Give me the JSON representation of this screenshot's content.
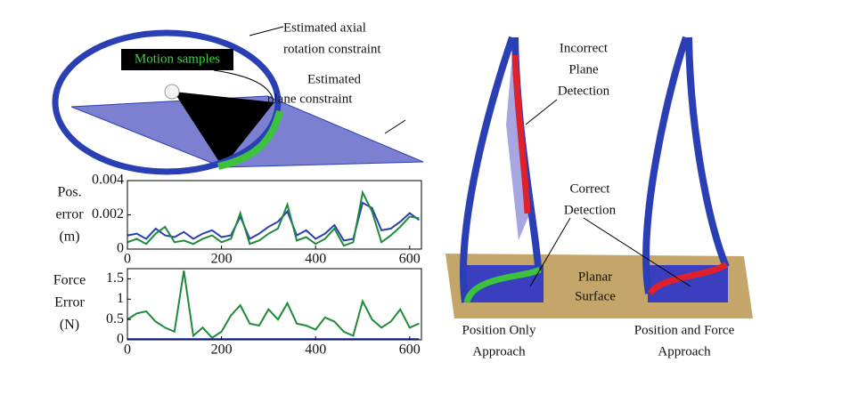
{
  "chart_data": [
    {
      "type": "line",
      "ylabel": [
        "Pos.",
        "error",
        "(m)"
      ],
      "x": [
        0,
        20,
        40,
        60,
        80,
        100,
        120,
        140,
        160,
        180,
        200,
        220,
        240,
        260,
        280,
        300,
        320,
        340,
        360,
        380,
        400,
        420,
        440,
        460,
        480,
        500,
        520,
        540,
        560,
        580,
        600,
        620
      ],
      "series": [
        {
          "color": "#2b3fb5",
          "values": [
            0.0008,
            0.0009,
            0.0006,
            0.0012,
            0.0008,
            0.0007,
            0.001,
            0.0006,
            0.0009,
            0.0011,
            0.0007,
            0.0008,
            0.0019,
            0.0006,
            0.0009,
            0.0013,
            0.0016,
            0.0022,
            0.0008,
            0.0011,
            0.0006,
            0.0009,
            0.0014,
            0.0005,
            0.0006,
            0.0027,
            0.0024,
            0.0011,
            0.0012,
            0.0016,
            0.0021,
            0.0017
          ]
        },
        {
          "color": "#1f8a3a",
          "values": [
            0.0004,
            0.0006,
            0.0003,
            0.0009,
            0.0013,
            0.0004,
            0.0005,
            0.0003,
            0.0006,
            0.0008,
            0.0004,
            0.0006,
            0.0021,
            0.0003,
            0.0005,
            0.0009,
            0.0012,
            0.0026,
            0.0005,
            0.0007,
            0.0003,
            0.0006,
            0.0012,
            0.0002,
            0.0004,
            0.0033,
            0.0022,
            0.0004,
            0.0008,
            0.0013,
            0.0019,
            0.0018
          ]
        }
      ],
      "xlim": [
        0,
        625
      ],
      "xticks": [
        0,
        200,
        400,
        600
      ],
      "ylim": [
        0,
        0.004
      ],
      "yticks": [
        0,
        0.002,
        0.004
      ]
    },
    {
      "type": "line",
      "ylabel": [
        "Force",
        "Error",
        "(N)"
      ],
      "x": [
        0,
        20,
        40,
        60,
        80,
        100,
        120,
        140,
        160,
        180,
        200,
        220,
        240,
        260,
        280,
        300,
        320,
        340,
        360,
        380,
        400,
        420,
        440,
        460,
        480,
        500,
        520,
        540,
        560,
        580,
        600,
        620
      ],
      "series": [
        {
          "color": "#1f8a3a",
          "values": [
            0.5,
            0.65,
            0.7,
            0.45,
            0.3,
            0.2,
            1.7,
            0.1,
            0.3,
            0.05,
            0.2,
            0.6,
            0.85,
            0.4,
            0.35,
            0.75,
            0.5,
            0.9,
            0.4,
            0.35,
            0.25,
            0.55,
            0.45,
            0.2,
            0.1,
            0.95,
            0.5,
            0.3,
            0.45,
            0.75,
            0.3,
            0.4
          ]
        },
        {
          "color": "#2b3fb5",
          "values": [
            0.02,
            0.02,
            0.02,
            0.02,
            0.02,
            0.02,
            0.02,
            0.02,
            0.02,
            0.02,
            0.02,
            0.02,
            0.02,
            0.02,
            0.02,
            0.02,
            0.02,
            0.02,
            0.02,
            0.02,
            0.02,
            0.02,
            0.02,
            0.02,
            0.02,
            0.02,
            0.02,
            0.02,
            0.02,
            0.02,
            0.02,
            0.02
          ]
        }
      ],
      "xlim": [
        0,
        625
      ],
      "xticks": [
        0,
        200,
        400,
        600
      ],
      "ylim": [
        0,
        1.75
      ],
      "yticks": [
        0,
        0.5,
        1,
        1.5
      ]
    }
  ],
  "illustration": {
    "axial": [
      "Estimated axial",
      "rotation constraint"
    ],
    "motion": "Motion samples",
    "plane": [
      "Estimated",
      "plane constraint"
    ],
    "incorrect": [
      "Incorrect",
      "Plane",
      "Detection"
    ],
    "correct": [
      "Correct",
      "Detection"
    ],
    "surface": [
      "Planar",
      "Surface"
    ],
    "left_caption": [
      "Position Only",
      "Approach"
    ],
    "right_caption": [
      "Position and Force",
      "Approach"
    ]
  }
}
